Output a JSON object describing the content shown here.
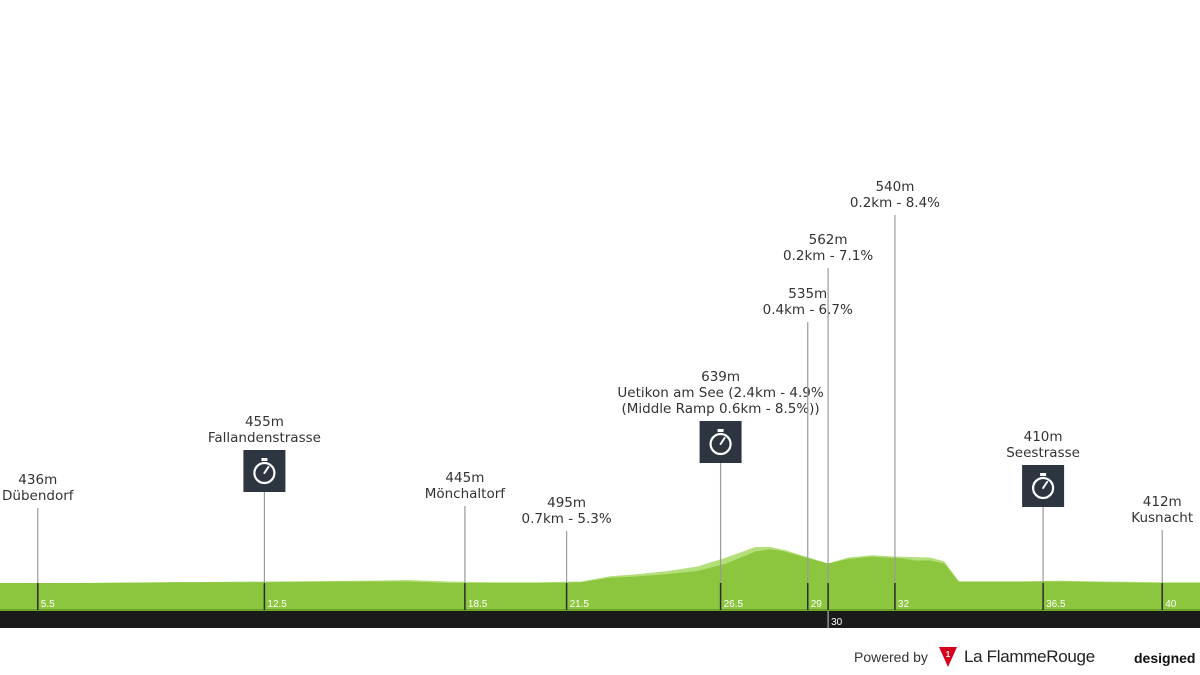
{
  "chart_data": {
    "type": "area",
    "x_unit": "km",
    "xlim": [
      0,
      41.3
    ],
    "profile_back": [
      [
        0,
        436
      ],
      [
        3,
        436
      ],
      [
        6,
        437
      ],
      [
        9,
        438
      ],
      [
        12.5,
        439
      ],
      [
        14,
        440
      ],
      [
        15.5,
        438
      ],
      [
        17,
        437
      ],
      [
        18.5,
        437
      ],
      [
        20,
        438
      ],
      [
        21,
        445
      ],
      [
        22,
        448
      ],
      [
        23,
        452
      ],
      [
        24,
        458
      ],
      [
        25,
        470
      ],
      [
        26,
        484
      ],
      [
        26.5,
        484
      ],
      [
        27,
        480
      ],
      [
        28,
        468
      ],
      [
        28.5,
        462
      ],
      [
        29.2,
        470
      ],
      [
        30,
        473
      ],
      [
        31,
        471
      ],
      [
        32,
        470
      ],
      [
        32.5,
        465
      ],
      [
        33,
        438
      ],
      [
        35,
        438
      ],
      [
        36.5,
        439
      ],
      [
        38,
        438
      ],
      [
        40,
        437
      ],
      [
        41.3,
        437
      ]
    ],
    "profile_front": [
      [
        0,
        436
      ],
      [
        3,
        436
      ],
      [
        6,
        437
      ],
      [
        9,
        437
      ],
      [
        12.5,
        438
      ],
      [
        14,
        438
      ],
      [
        15.5,
        436
      ],
      [
        17,
        436
      ],
      [
        18.5,
        436
      ],
      [
        20,
        437
      ],
      [
        21,
        443
      ],
      [
        22,
        445
      ],
      [
        23,
        448
      ],
      [
        24,
        452
      ],
      [
        25,
        462
      ],
      [
        26,
        478
      ],
      [
        26.5,
        481
      ],
      [
        27,
        478
      ],
      [
        28,
        467
      ],
      [
        28.5,
        462
      ],
      [
        29.2,
        468
      ],
      [
        30,
        471
      ],
      [
        31,
        469
      ],
      [
        31.5,
        466
      ],
      [
        32,
        466
      ],
      [
        32.5,
        462
      ],
      [
        33,
        438
      ],
      [
        35,
        438
      ],
      [
        36.5,
        438
      ],
      [
        38,
        437
      ],
      [
        40,
        436
      ],
      [
        41.3,
        436
      ]
    ],
    "markers": [
      {
        "km": 1.3,
        "axis_label": "5.5",
        "lines": [
          "436m",
          "Dübendorf"
        ],
        "stopwatch": false,
        "top_km": 0
      },
      {
        "km": 9.1,
        "axis_label": "12.5",
        "lines": [
          "455m",
          "Fallandenstrasse"
        ],
        "stopwatch": true,
        "top_km": 0
      },
      {
        "km": 16.0,
        "axis_label": "18.5",
        "lines": [
          "445m",
          "Mönchaltorf"
        ],
        "stopwatch": false,
        "top_km": 0
      },
      {
        "km": 19.5,
        "axis_label": "21.5",
        "lines": [
          "495m",
          "0.7km - 5.3%"
        ],
        "stopwatch": false,
        "top_km": 0
      },
      {
        "km": 24.8,
        "axis_label": "26.5",
        "lines": [
          "639m",
          "Uetikon am See (2.4km - 4.9%",
          "(Middle Ramp 0.6km - 8.5%))"
        ],
        "stopwatch": true,
        "top_km": 0
      },
      {
        "km": 27.8,
        "axis_label": "29",
        "lines": [
          "535m",
          "0.4km - 6.7%"
        ],
        "stopwatch": false,
        "top_km": 0
      },
      {
        "km": 28.5,
        "axis_label": "",
        "lines": [
          "562m",
          "0.2km - 7.1%"
        ],
        "stopwatch": false,
        "top_km": 0
      },
      {
        "km": 30.8,
        "axis_label": "32",
        "lines": [
          "540m",
          "0.2km - 8.4%"
        ],
        "stopwatch": false,
        "top_km": 0
      },
      {
        "km": 35.9,
        "axis_label": "36.5",
        "lines": [
          "410m",
          "Seestrasse"
        ],
        "stopwatch": true,
        "top_km": 0
      },
      {
        "km": 40.0,
        "axis_label": "40",
        "lines": [
          "412m",
          "Kusnacht"
        ],
        "stopwatch": false,
        "top_km": 0
      }
    ],
    "axis_ticks": [
      {
        "km": 28.5,
        "label": "30"
      }
    ],
    "colors": {
      "front": "#8cc63f",
      "back": "#b4df7a",
      "axis": "#1a1a1a",
      "outline": "#6aa428",
      "stopwatch": "#2d3640"
    }
  },
  "footer": {
    "powered_by": "Powered by",
    "brand": "La FlammeRouge",
    "brand_mark_number": "1",
    "designed": "designed"
  }
}
